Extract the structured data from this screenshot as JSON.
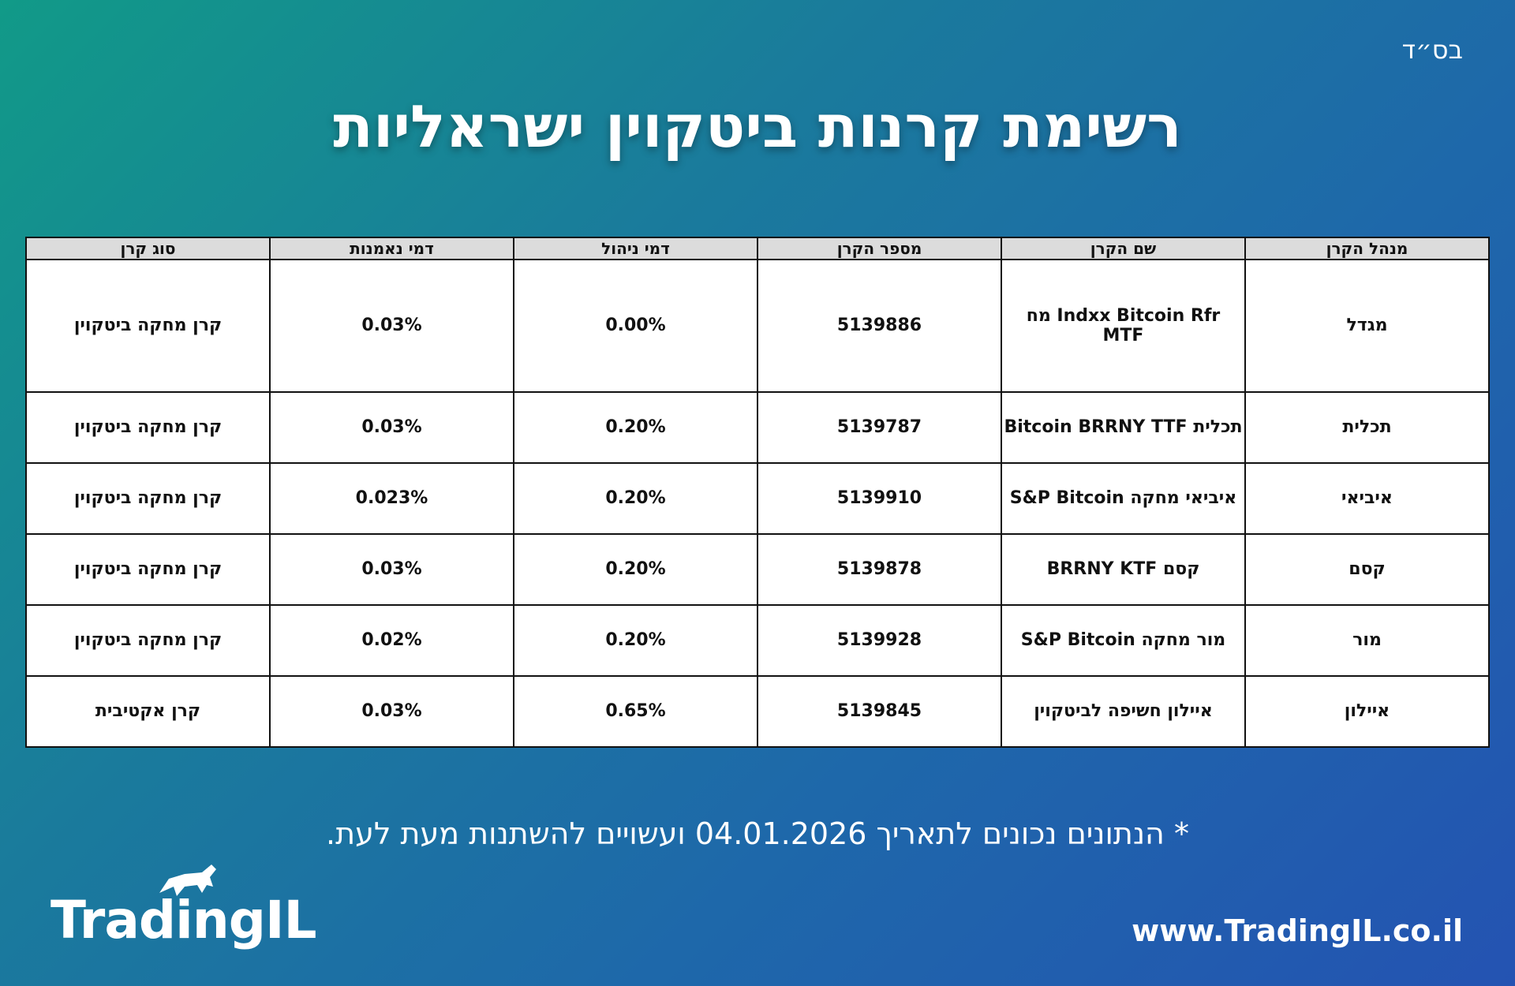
{
  "header": {
    "top_note": "בס״ד",
    "title": "רשימת קרנות ביטקוין ישראליות"
  },
  "table": {
    "columns": [
      "מנהל הקרן",
      "שם הקרן",
      "מספר הקרן",
      "דמי ניהול",
      "דמי נאמנות",
      "סוג קרן"
    ],
    "rows": [
      [
        "מגדל",
        "Indxx Bitcoin Rfr מח MTF",
        "5139886",
        "0.00%",
        "0.03%",
        "קרן מחקה ביטקוין"
      ],
      [
        "תכלית",
        "תכלית Bitcoin BRRNY TTF",
        "5139787",
        "0.20%",
        "0.03%",
        "קרן מחקה ביטקוין"
      ],
      [
        "איביאי",
        "איביאי מחקה S&P Bitcoin",
        "5139910",
        "0.20%",
        "0.023%",
        "קרן מחקה ביטקוין"
      ],
      [
        "קסם",
        "קסם BRRNY KTF",
        "5139878",
        "0.20%",
        "0.03%",
        "קרן מחקה ביטקוין"
      ],
      [
        "מור",
        "מור מחקה S&P Bitcoin",
        "5139928",
        "0.20%",
        "0.02%",
        "קרן מחקה ביטקוין"
      ],
      [
        "איילון",
        "איילון חשיפה לביטקוין",
        "5139845",
        "0.65%",
        "0.03%",
        "קרן אקטיבית"
      ]
    ]
  },
  "footnote": "* הנתונים נכונים לתאריך 04.01.2026 ועשויים להשתנות מעת לעת.",
  "logo": "TradingIL",
  "url": "www.TradingIL.co.il"
}
